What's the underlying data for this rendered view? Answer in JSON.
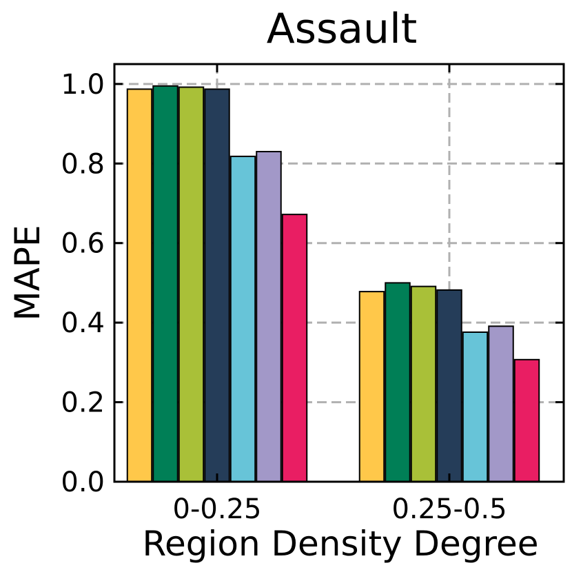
{
  "chart_data": {
    "type": "bar",
    "title": "Assault",
    "xlabel": "Region Density Degree",
    "ylabel": "MAPE",
    "categories": [
      "0-0.25",
      "0.25-0.5"
    ],
    "ylim": [
      0.0,
      1.05
    ],
    "yticks": [
      "0.0",
      "0.2",
      "0.4",
      "0.6",
      "0.8",
      "1.0"
    ],
    "grid": true,
    "legend": "none",
    "series": [
      {
        "color": "#FFC84A",
        "values": [
          0.987,
          0.478
        ]
      },
      {
        "color": "#007F56",
        "values": [
          0.995,
          0.5
        ]
      },
      {
        "color": "#A9C038",
        "values": [
          0.992,
          0.491
        ]
      },
      {
        "color": "#253D59",
        "values": [
          0.987,
          0.482
        ]
      },
      {
        "color": "#67C4D8",
        "values": [
          0.818,
          0.376
        ]
      },
      {
        "color": "#A298C8",
        "values": [
          0.83,
          0.391
        ]
      },
      {
        "color": "#E91E63",
        "values": [
          0.672,
          0.307
        ]
      }
    ]
  }
}
